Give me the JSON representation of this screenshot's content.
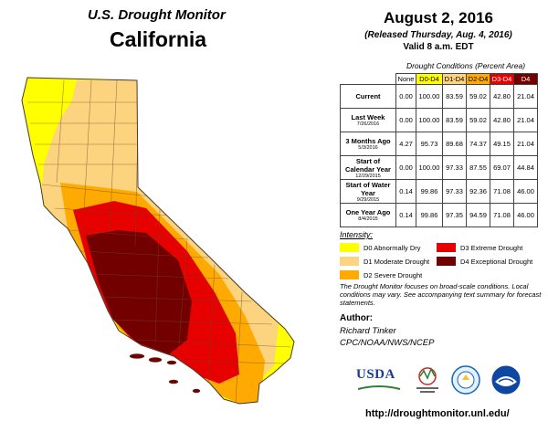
{
  "header": {
    "monitor_title": "U.S. Drought Monitor",
    "state": "California",
    "date": "August 2, 2016",
    "released": "(Released Thursday, Aug. 4, 2016)",
    "valid": "Valid 8 a.m. EDT"
  },
  "table": {
    "caption": "Drought Conditions (Percent Area)",
    "columns": [
      "None",
      "D0-D4",
      "D1-D4",
      "D2-D4",
      "D3-D4",
      "D4"
    ],
    "rows": [
      {
        "label": "Current",
        "sub": "",
        "values": [
          "0.00",
          "100.00",
          "83.59",
          "59.02",
          "42.80",
          "21.04"
        ]
      },
      {
        "label": "Last Week",
        "sub": "7/26/2016",
        "values": [
          "0.00",
          "100.00",
          "83.59",
          "59.02",
          "42.80",
          "21.04"
        ]
      },
      {
        "label": "3 Months Ago",
        "sub": "5/3/2016",
        "values": [
          "4.27",
          "95.73",
          "89.68",
          "74.37",
          "49.15",
          "21.04"
        ]
      },
      {
        "label": "Start of Calendar Year",
        "sub": "12/29/2015",
        "values": [
          "0.00",
          "100.00",
          "97.33",
          "87.55",
          "69.07",
          "44.84"
        ]
      },
      {
        "label": "Start of Water Year",
        "sub": "9/29/2015",
        "values": [
          "0.14",
          "99.86",
          "97.33",
          "92.36",
          "71.08",
          "46.00"
        ]
      },
      {
        "label": "One Year Ago",
        "sub": "8/4/2015",
        "values": [
          "0.14",
          "99.86",
          "97.35",
          "94.59",
          "71.08",
          "46.00"
        ]
      }
    ]
  },
  "legend": {
    "title": "Intensity:",
    "items": [
      {
        "label": "D0 Abnormally Dry",
        "color": "#ffff00"
      },
      {
        "label": "D1 Moderate Drought",
        "color": "#fcd37f"
      },
      {
        "label": "D2 Severe Drought",
        "color": "#ffaa00"
      },
      {
        "label": "D3 Extreme Drought",
        "color": "#e60000"
      },
      {
        "label": "D4 Exceptional Drought",
        "color": "#730000"
      }
    ]
  },
  "disclaimer": "The Drought Monitor focuses on broad-scale conditions. Local conditions may vary. See accompanying text summary for forecast statements.",
  "author": {
    "heading": "Author:",
    "lines": [
      "Richard Tinker",
      "CPC/NOAA/NWS/NCEP"
    ]
  },
  "logos": {
    "usda": "USDA",
    "ndmc": "National Drought Mitigation Center",
    "noaa": "NOAA"
  },
  "url": "http://droughtmonitor.unl.edu/"
}
